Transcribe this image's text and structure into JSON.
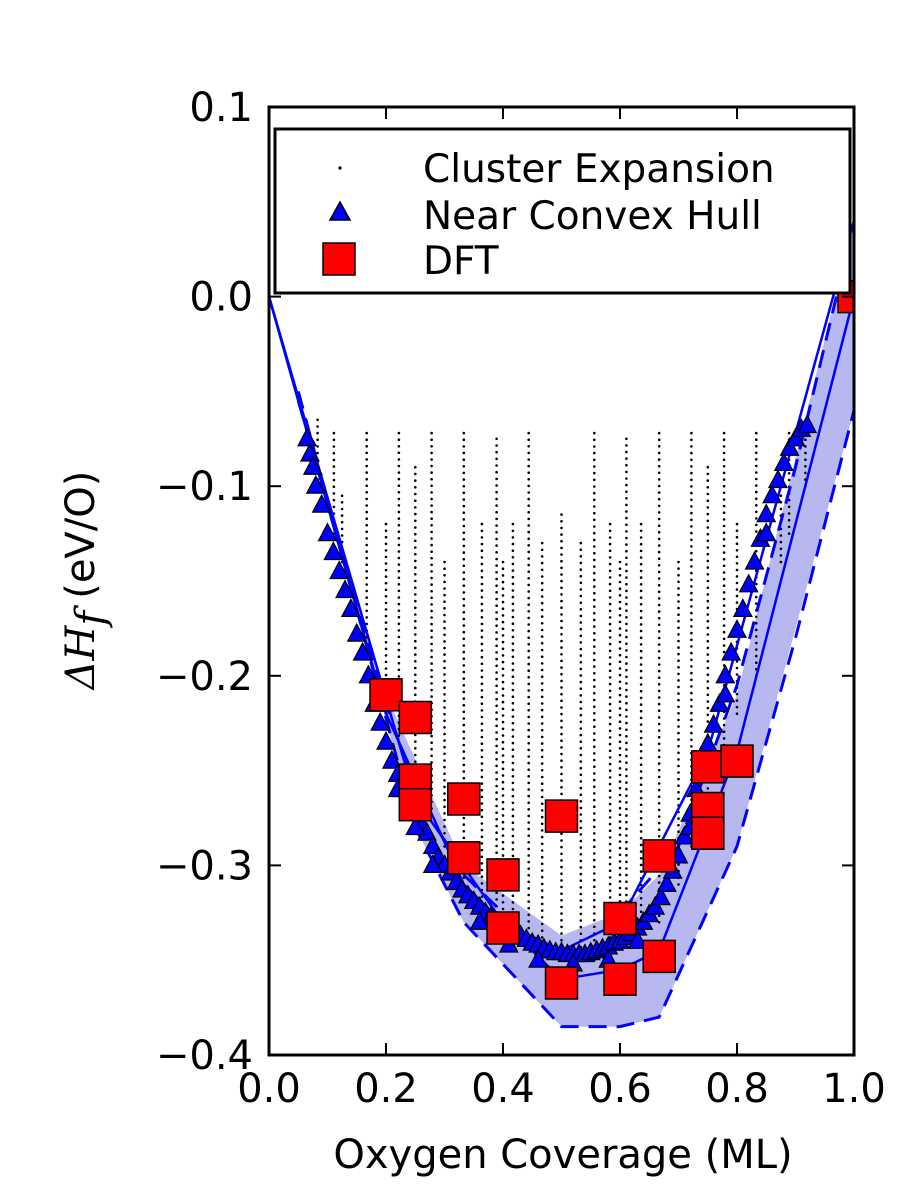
{
  "chart_data": {
    "type": "scatter",
    "title": "",
    "xlabel": "Oxygen Coverage (ML)",
    "ylabel": {
      "symbol": "ΔH",
      "subscript": "f",
      "units": "(eV/O)"
    },
    "xlim": [
      0.0,
      1.0
    ],
    "ylim": [
      -0.4,
      0.1
    ],
    "x_ticks": [
      0.0,
      0.2,
      0.4,
      0.6,
      0.8,
      1.0
    ],
    "x_tick_labels": [
      "0.0",
      "0.2",
      "0.4",
      "0.6",
      "0.8",
      "1.0"
    ],
    "y_ticks": [
      0.1,
      0.0,
      -0.1,
      -0.2,
      -0.3,
      -0.4
    ],
    "y_tick_labels": [
      "0.1",
      "0.0",
      "−0.1",
      "−0.2",
      "−0.3",
      "−0.4"
    ],
    "grid": false,
    "legend_position": "top",
    "colors": {
      "cluster_expansion": "#000000",
      "near_hull_fill": "#0000ff",
      "dft_fill": "#ff0000",
      "lines": "#0000ff",
      "band": "#b0b0f0"
    },
    "series": [
      {
        "name": "Cluster Expansion",
        "marker": "dot",
        "description": "dense vertical columns of points at each rational coverage",
        "columns": [
          {
            "x": 0.056,
            "ymin": -0.06,
            "ymax": -0.06
          },
          {
            "x": 0.083,
            "ymin": -0.1,
            "ymax": -0.065
          },
          {
            "x": 0.111,
            "ymin": -0.125,
            "ymax": -0.072
          },
          {
            "x": 0.125,
            "ymin": -0.14,
            "ymax": -0.105
          },
          {
            "x": 0.167,
            "ymin": -0.19,
            "ymax": -0.072
          },
          {
            "x": 0.2,
            "ymin": -0.21,
            "ymax": -0.12
          },
          {
            "x": 0.222,
            "ymin": -0.235,
            "ymax": -0.072
          },
          {
            "x": 0.25,
            "ymin": -0.27,
            "ymax": -0.09
          },
          {
            "x": 0.278,
            "ymin": -0.27,
            "ymax": -0.072
          },
          {
            "x": 0.3,
            "ymin": -0.29,
            "ymax": -0.14
          },
          {
            "x": 0.333,
            "ymin": -0.31,
            "ymax": -0.072
          },
          {
            "x": 0.364,
            "ymin": -0.32,
            "ymax": -0.12
          },
          {
            "x": 0.389,
            "ymin": -0.325,
            "ymax": -0.075
          },
          {
            "x": 0.4,
            "ymin": -0.33,
            "ymax": -0.14
          },
          {
            "x": 0.417,
            "ymin": -0.33,
            "ymax": -0.12
          },
          {
            "x": 0.444,
            "ymin": -0.34,
            "ymax": -0.072
          },
          {
            "x": 0.467,
            "ymin": -0.345,
            "ymax": -0.13
          },
          {
            "x": 0.5,
            "ymin": -0.35,
            "ymax": -0.115
          },
          {
            "x": 0.533,
            "ymin": -0.35,
            "ymax": -0.13
          },
          {
            "x": 0.556,
            "ymin": -0.35,
            "ymax": -0.072
          },
          {
            "x": 0.583,
            "ymin": -0.345,
            "ymax": -0.12
          },
          {
            "x": 0.6,
            "ymin": -0.34,
            "ymax": -0.14
          },
          {
            "x": 0.611,
            "ymin": -0.34,
            "ymax": -0.075
          },
          {
            "x": 0.636,
            "ymin": -0.335,
            "ymax": -0.12
          },
          {
            "x": 0.667,
            "ymin": -0.33,
            "ymax": -0.072
          },
          {
            "x": 0.7,
            "ymin": -0.31,
            "ymax": -0.14
          },
          {
            "x": 0.722,
            "ymin": -0.29,
            "ymax": -0.072
          },
          {
            "x": 0.75,
            "ymin": -0.27,
            "ymax": -0.09
          },
          {
            "x": 0.778,
            "ymin": -0.24,
            "ymax": -0.072
          },
          {
            "x": 0.8,
            "ymin": -0.22,
            "ymax": -0.12
          },
          {
            "x": 0.833,
            "ymin": -0.2,
            "ymax": -0.072
          },
          {
            "x": 0.875,
            "ymin": -0.14,
            "ymax": -0.105
          },
          {
            "x": 0.889,
            "ymin": -0.125,
            "ymax": -0.072
          },
          {
            "x": 0.917,
            "ymin": -0.1,
            "ymax": -0.072
          }
        ]
      },
      {
        "name": "Near Convex Hull",
        "marker": "triangle",
        "points": [
          [
            0.065,
            -0.075
          ],
          [
            0.07,
            -0.083
          ],
          [
            0.075,
            -0.09
          ],
          [
            0.08,
            -0.1
          ],
          [
            0.09,
            -0.11
          ],
          [
            0.1,
            -0.125
          ],
          [
            0.11,
            -0.135
          ],
          [
            0.12,
            -0.145
          ],
          [
            0.13,
            -0.155
          ],
          [
            0.14,
            -0.165
          ],
          [
            0.15,
            -0.178
          ],
          [
            0.16,
            -0.188
          ],
          [
            0.17,
            -0.2
          ],
          [
            0.18,
            -0.215
          ],
          [
            0.19,
            -0.225
          ],
          [
            0.2,
            -0.235
          ],
          [
            0.21,
            -0.245
          ],
          [
            0.22,
            -0.252
          ],
          [
            0.23,
            -0.26
          ],
          [
            0.24,
            -0.266
          ],
          [
            0.25,
            -0.272
          ],
          [
            0.26,
            -0.278
          ],
          [
            0.27,
            -0.283
          ],
          [
            0.28,
            -0.29
          ],
          [
            0.29,
            -0.296
          ],
          [
            0.3,
            -0.3
          ],
          [
            0.31,
            -0.304
          ],
          [
            0.32,
            -0.309
          ],
          [
            0.33,
            -0.313
          ],
          [
            0.34,
            -0.316
          ],
          [
            0.35,
            -0.319
          ],
          [
            0.36,
            -0.322
          ],
          [
            0.37,
            -0.325
          ],
          [
            0.38,
            -0.327
          ],
          [
            0.39,
            -0.33
          ],
          [
            0.4,
            -0.331
          ],
          [
            0.41,
            -0.333
          ],
          [
            0.42,
            -0.335
          ],
          [
            0.43,
            -0.337
          ],
          [
            0.44,
            -0.339
          ],
          [
            0.45,
            -0.341
          ],
          [
            0.46,
            -0.342
          ],
          [
            0.47,
            -0.344
          ],
          [
            0.48,
            -0.345
          ],
          [
            0.49,
            -0.346
          ],
          [
            0.5,
            -0.346
          ],
          [
            0.51,
            -0.347
          ],
          [
            0.52,
            -0.347
          ],
          [
            0.53,
            -0.347
          ],
          [
            0.54,
            -0.347
          ],
          [
            0.55,
            -0.346
          ],
          [
            0.56,
            -0.345
          ],
          [
            0.57,
            -0.344
          ],
          [
            0.58,
            -0.343
          ],
          [
            0.59,
            -0.341
          ],
          [
            0.6,
            -0.34
          ],
          [
            0.61,
            -0.338
          ],
          [
            0.62,
            -0.336
          ],
          [
            0.63,
            -0.333
          ],
          [
            0.64,
            -0.33
          ],
          [
            0.65,
            -0.326
          ],
          [
            0.66,
            -0.322
          ],
          [
            0.67,
            -0.317
          ],
          [
            0.68,
            -0.31
          ],
          [
            0.69,
            -0.303
          ],
          [
            0.7,
            -0.295
          ],
          [
            0.71,
            -0.285
          ],
          [
            0.72,
            -0.273
          ],
          [
            0.73,
            -0.26
          ],
          [
            0.74,
            -0.247
          ],
          [
            0.75,
            -0.236
          ],
          [
            0.76,
            -0.226
          ],
          [
            0.77,
            -0.215
          ],
          [
            0.78,
            -0.2
          ],
          [
            0.79,
            -0.188
          ],
          [
            0.8,
            -0.176
          ],
          [
            0.81,
            -0.165
          ],
          [
            0.82,
            -0.152
          ],
          [
            0.83,
            -0.14
          ],
          [
            0.84,
            -0.128
          ],
          [
            0.85,
            -0.115
          ],
          [
            0.86,
            -0.105
          ],
          [
            0.87,
            -0.097
          ],
          [
            0.88,
            -0.088
          ],
          [
            0.89,
            -0.08
          ],
          [
            0.9,
            -0.075
          ],
          [
            0.91,
            -0.07
          ],
          [
            0.92,
            -0.068
          ],
          [
            0.36,
            -0.33
          ],
          [
            0.41,
            -0.342
          ],
          [
            0.46,
            -0.35
          ],
          [
            0.52,
            -0.352
          ],
          [
            0.58,
            -0.35
          ],
          [
            0.63,
            -0.34
          ],
          [
            0.25,
            -0.28
          ],
          [
            0.28,
            -0.3
          ],
          [
            0.72,
            -0.28
          ],
          [
            0.78,
            -0.21
          ],
          [
            0.22,
            -0.26
          ],
          [
            0.85,
            -0.125
          ]
        ]
      },
      {
        "name": "DFT",
        "marker": "square",
        "points": [
          [
            0.2,
            -0.21
          ],
          [
            0.25,
            -0.222
          ],
          [
            0.25,
            -0.255
          ],
          [
            0.25,
            -0.268
          ],
          [
            0.333,
            -0.265
          ],
          [
            0.333,
            -0.296
          ],
          [
            0.4,
            -0.305
          ],
          [
            0.4,
            -0.333
          ],
          [
            0.5,
            -0.274
          ],
          [
            0.5,
            -0.362
          ],
          [
            0.6,
            -0.328
          ],
          [
            0.6,
            -0.36
          ],
          [
            0.667,
            -0.295
          ],
          [
            0.667,
            -0.348
          ],
          [
            0.75,
            -0.248
          ],
          [
            0.75,
            -0.27
          ],
          [
            0.75,
            -0.283
          ],
          [
            0.8,
            -0.245
          ],
          [
            1.0,
            0.0
          ]
        ]
      }
    ],
    "hull_lines": [
      [
        [
          0.0,
          0.0
        ],
        [
          0.2,
          -0.22
        ],
        [
          0.333,
          -0.31
        ],
        [
          0.5,
          -0.36
        ],
        [
          0.6,
          -0.355
        ],
        [
          0.667,
          -0.345
        ],
        [
          0.8,
          -0.24
        ],
        [
          1.0,
          0.0
        ]
      ],
      [
        [
          0.0,
          0.0
        ],
        [
          0.25,
          -0.265
        ],
        [
          0.4,
          -0.33
        ],
        [
          0.5,
          -0.345
        ],
        [
          0.6,
          -0.33
        ],
        [
          0.75,
          -0.24
        ],
        [
          1.0,
          0.04
        ]
      ]
    ],
    "band": {
      "upper": [
        [
          0.0,
          0.0
        ],
        [
          0.2,
          -0.21
        ],
        [
          0.333,
          -0.3
        ],
        [
          0.5,
          -0.337
        ],
        [
          0.6,
          -0.325
        ],
        [
          0.667,
          -0.305
        ],
        [
          0.8,
          -0.21
        ],
        [
          1.0,
          0.04
        ]
      ],
      "lower": [
        [
          0.0,
          0.0
        ],
        [
          0.25,
          -0.28
        ],
        [
          0.333,
          -0.33
        ],
        [
          0.5,
          -0.385
        ],
        [
          0.6,
          -0.385
        ],
        [
          0.667,
          -0.38
        ],
        [
          0.8,
          -0.29
        ],
        [
          1.0,
          -0.06
        ]
      ]
    },
    "dashed_lines": [
      [
        [
          0.05,
          -0.05
        ],
        [
          0.25,
          -0.28
        ],
        [
          0.333,
          -0.33
        ],
        [
          0.5,
          -0.385
        ],
        [
          0.6,
          -0.385
        ],
        [
          0.667,
          -0.38
        ],
        [
          0.8,
          -0.29
        ],
        [
          0.9,
          -0.18
        ],
        [
          1.0,
          -0.06
        ]
      ],
      [
        [
          0.05,
          -0.055
        ],
        [
          0.2,
          -0.215
        ],
        [
          0.25,
          -0.26
        ],
        [
          0.333,
          -0.305
        ],
        [
          0.4,
          -0.325
        ]
      ],
      [
        [
          0.6,
          -0.325
        ],
        [
          0.7,
          -0.29
        ],
        [
          0.8,
          -0.205
        ],
        [
          0.9,
          -0.09
        ],
        [
          0.97,
          0.0
        ]
      ]
    ]
  }
}
